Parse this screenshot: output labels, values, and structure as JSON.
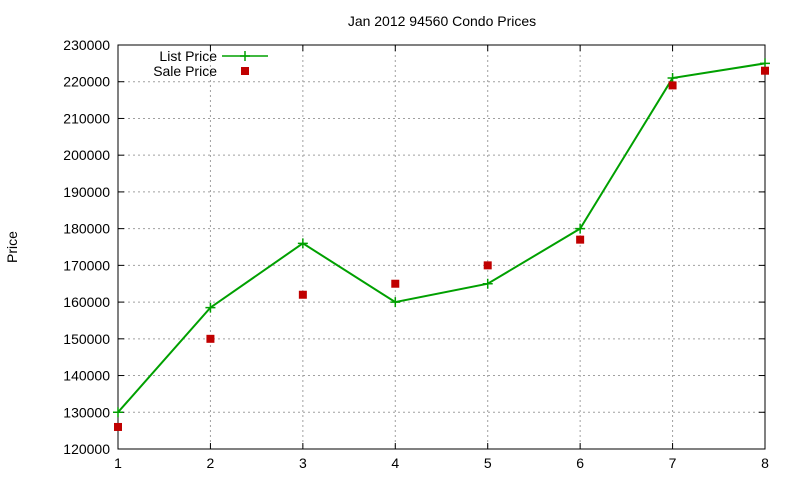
{
  "chart_data": {
    "type": "line",
    "title": "Jan 2012 94560 Condo Prices",
    "xlabel": "",
    "ylabel": "Price",
    "x": [
      1,
      2,
      3,
      4,
      5,
      6,
      7,
      8
    ],
    "xlim": [
      1,
      8
    ],
    "ylim": [
      120000,
      230000
    ],
    "xticks": [
      1,
      2,
      3,
      4,
      5,
      6,
      7,
      8
    ],
    "yticks": [
      120000,
      130000,
      140000,
      150000,
      160000,
      170000,
      180000,
      190000,
      200000,
      210000,
      220000,
      230000
    ],
    "grid": true,
    "legend_position": "top-left",
    "series": [
      {
        "name": "List Price",
        "style": "line-with-plus-markers",
        "color": "#00a000",
        "values": [
          130000,
          158500,
          176000,
          160000,
          165000,
          180000,
          221000,
          225000
        ]
      },
      {
        "name": "Sale Price",
        "style": "square-points",
        "color": "#c00000",
        "values": [
          126000,
          150000,
          162000,
          165000,
          170000,
          177000,
          219000,
          223000
        ]
      }
    ]
  }
}
